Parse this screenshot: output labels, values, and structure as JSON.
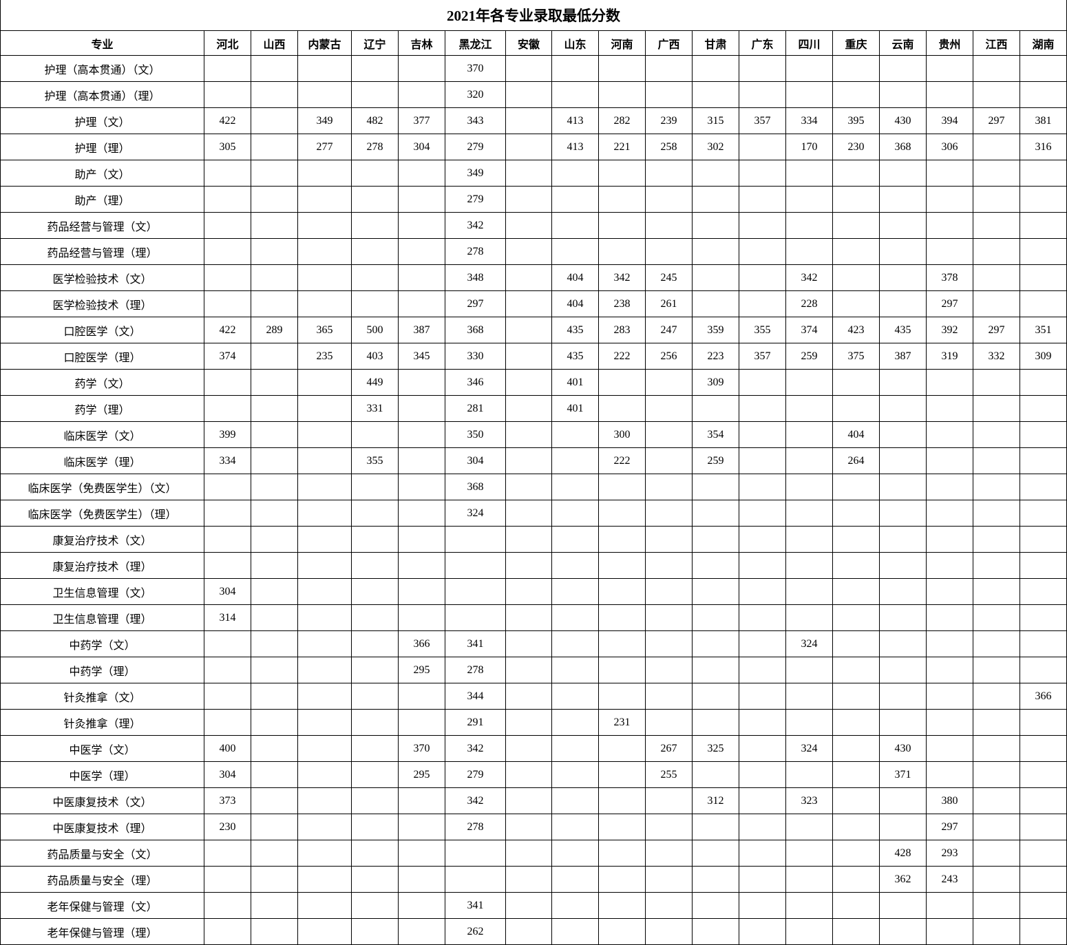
{
  "title": "2021年各专业录取最低分数",
  "header": {
    "major": "专业",
    "provinces": [
      "河北",
      "山西",
      "内蒙古",
      "辽宁",
      "吉林",
      "黑龙江",
      "安徽",
      "山东",
      "河南",
      "广西",
      "甘肃",
      "广东",
      "四川",
      "重庆",
      "云南",
      "贵州",
      "江西",
      "湖南"
    ]
  },
  "rows": [
    {
      "major": "护理（高本贯通）（文）",
      "scores": [
        "",
        "",
        "",
        "",
        "",
        "370",
        "",
        "",
        "",
        "",
        "",
        "",
        "",
        "",
        "",
        "",
        "",
        ""
      ]
    },
    {
      "major": "护理（高本贯通）（理）",
      "scores": [
        "",
        "",
        "",
        "",
        "",
        "320",
        "",
        "",
        "",
        "",
        "",
        "",
        "",
        "",
        "",
        "",
        "",
        ""
      ]
    },
    {
      "major": "护理（文）",
      "scores": [
        "422",
        "",
        "349",
        "482",
        "377",
        "343",
        "",
        "413",
        "282",
        "239",
        "315",
        "357",
        "334",
        "395",
        "430",
        "394",
        "297",
        "381"
      ]
    },
    {
      "major": "护理（理）",
      "scores": [
        "305",
        "",
        "277",
        "278",
        "304",
        "279",
        "",
        "413",
        "221",
        "258",
        "302",
        "",
        "170",
        "230",
        "368",
        "306",
        "",
        "316"
      ]
    },
    {
      "major": "助产（文）",
      "scores": [
        "",
        "",
        "",
        "",
        "",
        "349",
        "",
        "",
        "",
        "",
        "",
        "",
        "",
        "",
        "",
        "",
        "",
        ""
      ]
    },
    {
      "major": "助产（理）",
      "scores": [
        "",
        "",
        "",
        "",
        "",
        "279",
        "",
        "",
        "",
        "",
        "",
        "",
        "",
        "",
        "",
        "",
        "",
        ""
      ]
    },
    {
      "major": "药品经营与管理（文）",
      "scores": [
        "",
        "",
        "",
        "",
        "",
        "342",
        "",
        "",
        "",
        "",
        "",
        "",
        "",
        "",
        "",
        "",
        "",
        ""
      ]
    },
    {
      "major": "药品经营与管理（理）",
      "scores": [
        "",
        "",
        "",
        "",
        "",
        "278",
        "",
        "",
        "",
        "",
        "",
        "",
        "",
        "",
        "",
        "",
        "",
        ""
      ]
    },
    {
      "major": "医学检验技术（文）",
      "scores": [
        "",
        "",
        "",
        "",
        "",
        "348",
        "",
        "404",
        "342",
        "245",
        "",
        "",
        "342",
        "",
        "",
        "378",
        "",
        ""
      ]
    },
    {
      "major": "医学检验技术（理）",
      "scores": [
        "",
        "",
        "",
        "",
        "",
        "297",
        "",
        "404",
        "238",
        "261",
        "",
        "",
        "228",
        "",
        "",
        "297",
        "",
        ""
      ]
    },
    {
      "major": "口腔医学（文）",
      "scores": [
        "422",
        "289",
        "365",
        "500",
        "387",
        "368",
        "",
        "435",
        "283",
        "247",
        "359",
        "355",
        "374",
        "423",
        "435",
        "392",
        "297",
        "351"
      ]
    },
    {
      "major": "口腔医学（理）",
      "scores": [
        "374",
        "",
        "235",
        "403",
        "345",
        "330",
        "",
        "435",
        "222",
        "256",
        "223",
        "357",
        "259",
        "375",
        "387",
        "319",
        "332",
        "309"
      ]
    },
    {
      "major": "药学（文）",
      "scores": [
        "",
        "",
        "",
        "449",
        "",
        "346",
        "",
        "401",
        "",
        "",
        "309",
        "",
        "",
        "",
        "",
        "",
        "",
        ""
      ]
    },
    {
      "major": "药学（理）",
      "scores": [
        "",
        "",
        "",
        "331",
        "",
        "281",
        "",
        "401",
        "",
        "",
        "",
        "",
        "",
        "",
        "",
        "",
        "",
        ""
      ]
    },
    {
      "major": "临床医学（文）",
      "scores": [
        "399",
        "",
        "",
        "",
        "",
        "350",
        "",
        "",
        "300",
        "",
        "354",
        "",
        "",
        "404",
        "",
        "",
        "",
        ""
      ]
    },
    {
      "major": "临床医学（理）",
      "scores": [
        "334",
        "",
        "",
        "355",
        "",
        "304",
        "",
        "",
        "222",
        "",
        "259",
        "",
        "",
        "264",
        "",
        "",
        "",
        ""
      ]
    },
    {
      "major": "临床医学（免费医学生）（文）",
      "scores": [
        "",
        "",
        "",
        "",
        "",
        "368",
        "",
        "",
        "",
        "",
        "",
        "",
        "",
        "",
        "",
        "",
        "",
        ""
      ]
    },
    {
      "major": "临床医学（免费医学生）（理）",
      "scores": [
        "",
        "",
        "",
        "",
        "",
        "324",
        "",
        "",
        "",
        "",
        "",
        "",
        "",
        "",
        "",
        "",
        "",
        ""
      ]
    },
    {
      "major": "康复治疗技术（文）",
      "scores": [
        "",
        "",
        "",
        "",
        "",
        "",
        "",
        "",
        "",
        "",
        "",
        "",
        "",
        "",
        "",
        "",
        "",
        ""
      ]
    },
    {
      "major": "康复治疗技术（理）",
      "scores": [
        "",
        "",
        "",
        "",
        "",
        "",
        "",
        "",
        "",
        "",
        "",
        "",
        "",
        "",
        "",
        "",
        "",
        ""
      ]
    },
    {
      "major": "卫生信息管理（文）",
      "scores": [
        "304",
        "",
        "",
        "",
        "",
        "",
        "",
        "",
        "",
        "",
        "",
        "",
        "",
        "",
        "",
        "",
        "",
        ""
      ]
    },
    {
      "major": "卫生信息管理（理）",
      "scores": [
        "314",
        "",
        "",
        "",
        "",
        "",
        "",
        "",
        "",
        "",
        "",
        "",
        "",
        "",
        "",
        "",
        "",
        ""
      ]
    },
    {
      "major": "中药学（文）",
      "scores": [
        "",
        "",
        "",
        "",
        "366",
        "341",
        "",
        "",
        "",
        "",
        "",
        "",
        "324",
        "",
        "",
        "",
        "",
        ""
      ]
    },
    {
      "major": "中药学（理）",
      "scores": [
        "",
        "",
        "",
        "",
        "295",
        "278",
        "",
        "",
        "",
        "",
        "",
        "",
        "",
        "",
        "",
        "",
        "",
        ""
      ]
    },
    {
      "major": "针灸推拿（文）",
      "scores": [
        "",
        "",
        "",
        "",
        "",
        "344",
        "",
        "",
        "",
        "",
        "",
        "",
        "",
        "",
        "",
        "",
        "",
        "366"
      ]
    },
    {
      "major": "针灸推拿（理）",
      "scores": [
        "",
        "",
        "",
        "",
        "",
        "291",
        "",
        "",
        "231",
        "",
        "",
        "",
        "",
        "",
        "",
        "",
        "",
        ""
      ]
    },
    {
      "major": "中医学（文）",
      "scores": [
        "400",
        "",
        "",
        "",
        "370",
        "342",
        "",
        "",
        "",
        "267",
        "325",
        "",
        "324",
        "",
        "430",
        "",
        "",
        ""
      ]
    },
    {
      "major": "中医学（理）",
      "scores": [
        "304",
        "",
        "",
        "",
        "295",
        "279",
        "",
        "",
        "",
        "255",
        "",
        "",
        "",
        "",
        "371",
        "",
        "",
        ""
      ]
    },
    {
      "major": "中医康复技术（文）",
      "scores": [
        "373",
        "",
        "",
        "",
        "",
        "342",
        "",
        "",
        "",
        "",
        "312",
        "",
        "323",
        "",
        "",
        "380",
        "",
        ""
      ]
    },
    {
      "major": "中医康复技术（理）",
      "scores": [
        "230",
        "",
        "",
        "",
        "",
        "278",
        "",
        "",
        "",
        "",
        "",
        "",
        "",
        "",
        "",
        "297",
        "",
        ""
      ]
    },
    {
      "major": "药品质量与安全（文）",
      "scores": [
        "",
        "",
        "",
        "",
        "",
        "",
        "",
        "",
        "",
        "",
        "",
        "",
        "",
        "",
        "428",
        "293",
        "",
        ""
      ]
    },
    {
      "major": "药品质量与安全（理）",
      "scores": [
        "",
        "",
        "",
        "",
        "",
        "",
        "",
        "",
        "",
        "",
        "",
        "",
        "",
        "",
        "362",
        "243",
        "",
        ""
      ]
    },
    {
      "major": "老年保健与管理（文）",
      "scores": [
        "",
        "",
        "",
        "",
        "",
        "341",
        "",
        "",
        "",
        "",
        "",
        "",
        "",
        "",
        "",
        "",
        "",
        ""
      ]
    },
    {
      "major": "老年保健与管理（理）",
      "scores": [
        "",
        "",
        "",
        "",
        "",
        "262",
        "",
        "",
        "",
        "",
        "",
        "",
        "",
        "",
        "",
        "",
        "",
        ""
      ]
    }
  ]
}
